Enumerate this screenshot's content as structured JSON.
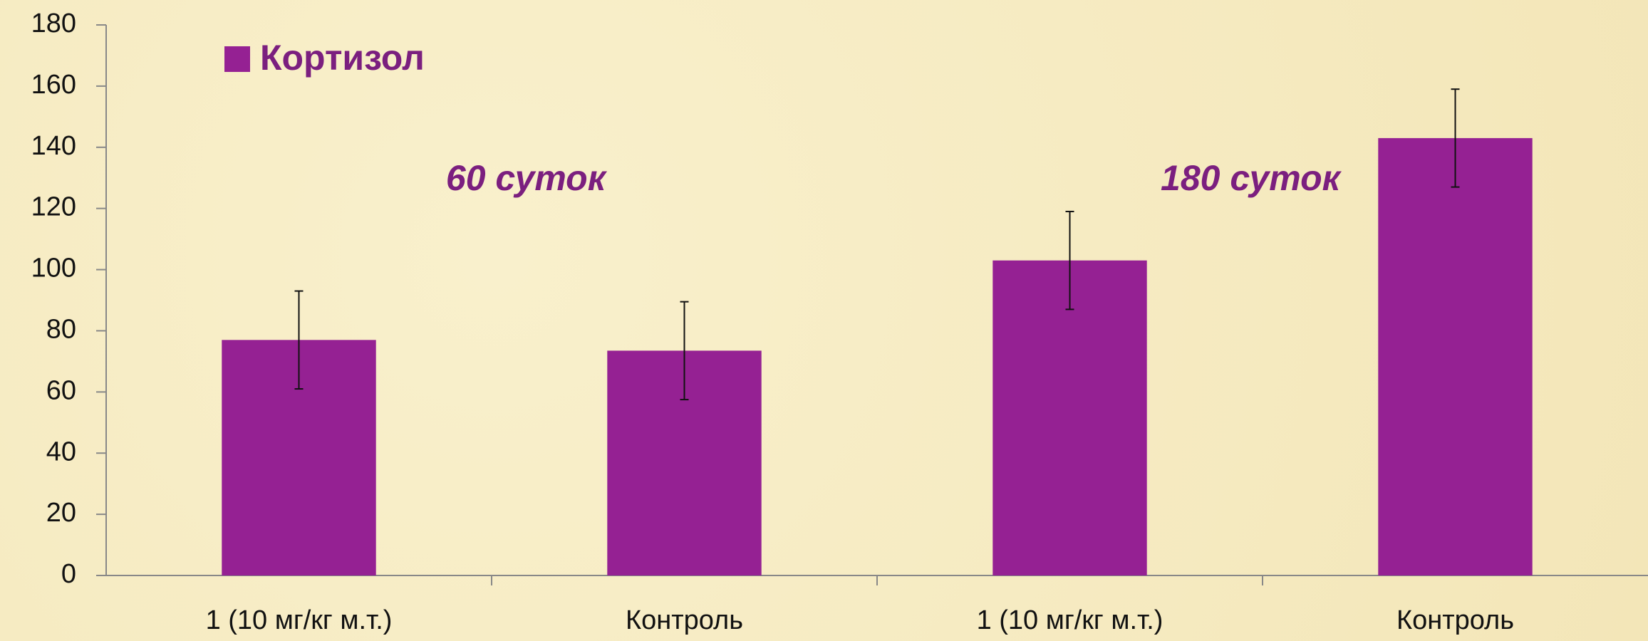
{
  "chart_data": {
    "type": "bar",
    "categories": [
      "1 (10 мг/кг м.т.)",
      "Контроль",
      "1 (10 мг/кг м.т.)",
      "Контроль"
    ],
    "series": [
      {
        "name": "Кортизол",
        "color": "#952193",
        "values": [
          77,
          73.5,
          103,
          143
        ],
        "errors": [
          16,
          16,
          16,
          16
        ]
      }
    ],
    "annotations": [
      "60 суток",
      "180 суток"
    ],
    "ylim": [
      0,
      180
    ],
    "yticks": [
      0,
      20,
      40,
      60,
      80,
      100,
      120,
      140,
      160,
      180
    ],
    "legend": "top-left",
    "grid": false
  }
}
